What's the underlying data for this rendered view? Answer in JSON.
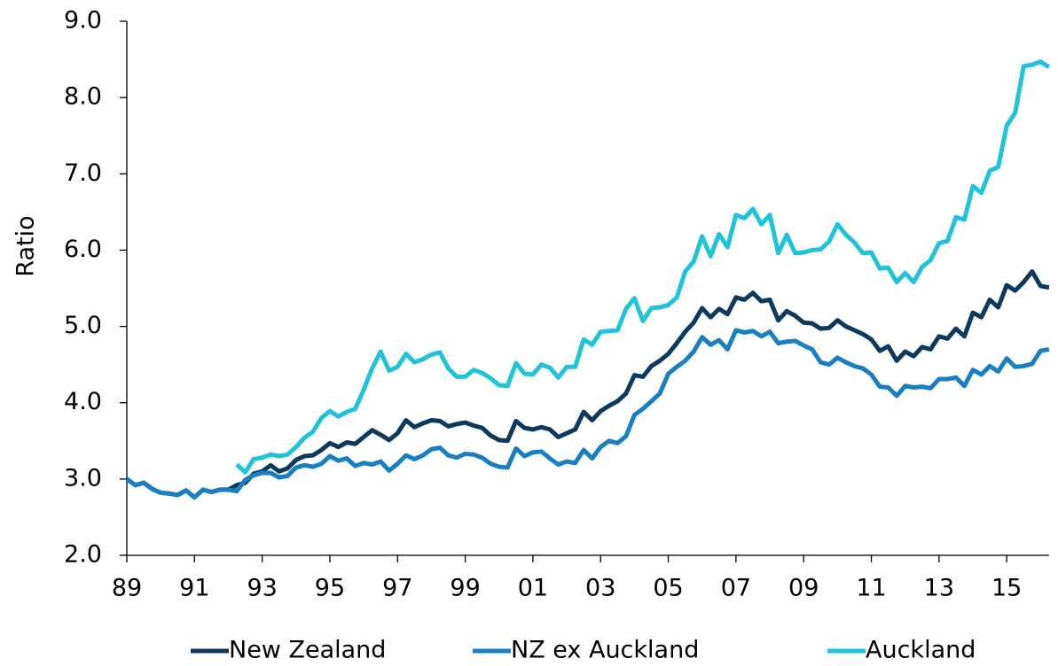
{
  "chart_data": {
    "type": "line",
    "y_label": "Ratio",
    "categories": [
      "89",
      null,
      null,
      null,
      null,
      null,
      null,
      null,
      "91",
      null,
      null,
      null,
      null,
      null,
      null,
      null,
      "93",
      null,
      null,
      null,
      null,
      null,
      null,
      null,
      "95",
      null,
      null,
      null,
      null,
      null,
      null,
      null,
      "97",
      null,
      null,
      null,
      null,
      null,
      null,
      null,
      "99",
      null,
      null,
      null,
      null,
      null,
      null,
      null,
      "01",
      null,
      null,
      null,
      null,
      null,
      null,
      null,
      "03",
      null,
      null,
      null,
      null,
      null,
      null,
      null,
      "05",
      null,
      null,
      null,
      null,
      null,
      null,
      null,
      "07",
      null,
      null,
      null,
      null,
      null,
      null,
      null,
      "09",
      null,
      null,
      null,
      null,
      null,
      null,
      null,
      "11",
      null,
      null,
      null,
      null,
      null,
      null,
      null,
      "13",
      null,
      null,
      null,
      null,
      null,
      null,
      null,
      "15",
      null,
      null,
      null,
      null,
      null
    ],
    "series": [
      {
        "name": "New Zealand",
        "color": "#0d3a5c",
        "values": [
          3.0,
          2.92,
          2.95,
          2.87,
          2.82,
          2.81,
          2.79,
          2.85,
          2.76,
          2.86,
          2.83,
          2.86,
          2.86,
          2.92,
          2.95,
          3.07,
          3.1,
          3.18,
          3.1,
          3.14,
          3.25,
          3.3,
          3.31,
          3.38,
          3.47,
          3.42,
          3.48,
          3.46,
          3.55,
          3.64,
          3.58,
          3.51,
          3.6,
          3.77,
          3.68,
          3.73,
          3.77,
          3.76,
          3.69,
          3.72,
          3.74,
          3.7,
          3.67,
          3.57,
          3.51,
          3.5,
          3.76,
          3.67,
          3.65,
          3.68,
          3.65,
          3.55,
          3.6,
          3.65,
          3.88,
          3.77,
          3.89,
          3.96,
          4.02,
          4.12,
          4.36,
          4.34,
          4.48,
          4.55,
          4.64,
          4.78,
          4.93,
          5.05,
          5.24,
          5.12,
          5.23,
          5.16,
          5.38,
          5.35,
          5.44,
          5.33,
          5.35,
          5.08,
          5.2,
          5.14,
          5.05,
          5.04,
          4.97,
          4.98,
          5.08,
          5.0,
          4.95,
          4.9,
          4.83,
          4.68,
          4.74,
          4.55,
          4.67,
          4.61,
          4.73,
          4.7,
          4.87,
          4.84,
          4.97,
          4.87,
          5.18,
          5.12,
          5.35,
          5.25,
          5.54,
          5.47,
          5.58,
          5.72,
          5.53,
          5.51
        ]
      },
      {
        "name": "NZ ex Auckland",
        "color": "#1a7fc0",
        "values": [
          3.0,
          2.92,
          2.95,
          2.87,
          2.82,
          2.81,
          2.79,
          2.85,
          2.76,
          2.86,
          2.83,
          2.86,
          2.86,
          2.84,
          2.99,
          3.05,
          3.08,
          3.08,
          3.02,
          3.04,
          3.15,
          3.18,
          3.16,
          3.2,
          3.3,
          3.24,
          3.27,
          3.17,
          3.21,
          3.19,
          3.23,
          3.11,
          3.2,
          3.31,
          3.26,
          3.31,
          3.39,
          3.41,
          3.31,
          3.28,
          3.33,
          3.32,
          3.28,
          3.2,
          3.16,
          3.15,
          3.4,
          3.3,
          3.35,
          3.36,
          3.27,
          3.19,
          3.23,
          3.21,
          3.38,
          3.27,
          3.42,
          3.5,
          3.47,
          3.56,
          3.84,
          3.92,
          4.02,
          4.12,
          4.38,
          4.47,
          4.55,
          4.67,
          4.86,
          4.76,
          4.82,
          4.7,
          4.95,
          4.92,
          4.94,
          4.87,
          4.93,
          4.78,
          4.8,
          4.81,
          4.75,
          4.7,
          4.53,
          4.5,
          4.59,
          4.53,
          4.48,
          4.45,
          4.37,
          4.21,
          4.2,
          4.09,
          4.22,
          4.2,
          4.21,
          4.19,
          4.31,
          4.31,
          4.33,
          4.22,
          4.43,
          4.37,
          4.48,
          4.41,
          4.58,
          4.47,
          4.48,
          4.51,
          4.68,
          4.7
        ]
      },
      {
        "name": "Auckland",
        "color": "#1fc4d8",
        "values": [
          null,
          null,
          null,
          null,
          null,
          null,
          null,
          null,
          null,
          null,
          null,
          null,
          null,
          3.19,
          3.09,
          3.26,
          3.28,
          3.32,
          3.3,
          3.32,
          3.42,
          3.54,
          3.62,
          3.8,
          3.89,
          3.82,
          3.88,
          3.92,
          4.17,
          4.45,
          4.67,
          4.42,
          4.47,
          4.64,
          4.53,
          4.57,
          4.63,
          4.66,
          4.45,
          4.34,
          4.34,
          4.43,
          4.39,
          4.32,
          4.23,
          4.22,
          4.52,
          4.38,
          4.37,
          4.5,
          4.46,
          4.33,
          4.47,
          4.47,
          4.83,
          4.76,
          4.93,
          4.94,
          4.95,
          5.23,
          5.37,
          5.07,
          5.24,
          5.25,
          5.28,
          5.38,
          5.72,
          5.85,
          6.18,
          5.92,
          6.21,
          6.04,
          6.46,
          6.42,
          6.54,
          6.34,
          6.46,
          5.96,
          6.2,
          5.96,
          5.97,
          6.0,
          6.01,
          6.11,
          6.34,
          6.2,
          6.1,
          5.96,
          5.97,
          5.76,
          5.77,
          5.58,
          5.7,
          5.58,
          5.78,
          5.87,
          6.09,
          6.12,
          6.43,
          6.4,
          6.84,
          6.75,
          7.04,
          7.09,
          7.63,
          7.8,
          8.41,
          8.43,
          8.47,
          8.4
        ]
      }
    ],
    "ylim": [
      2,
      9
    ],
    "yticks": [
      {
        "value": 2,
        "label": "2.0"
      },
      {
        "value": 3,
        "label": "3.0"
      },
      {
        "value": 4,
        "label": "4.0"
      },
      {
        "value": 5,
        "label": "5.0"
      },
      {
        "value": 6,
        "label": "6.0"
      },
      {
        "value": 7,
        "label": "7.0"
      },
      {
        "value": 8,
        "label": "8.0"
      },
      {
        "value": 9,
        "label": "9.0"
      }
    ],
    "grid": false,
    "legend": "bottom"
  }
}
